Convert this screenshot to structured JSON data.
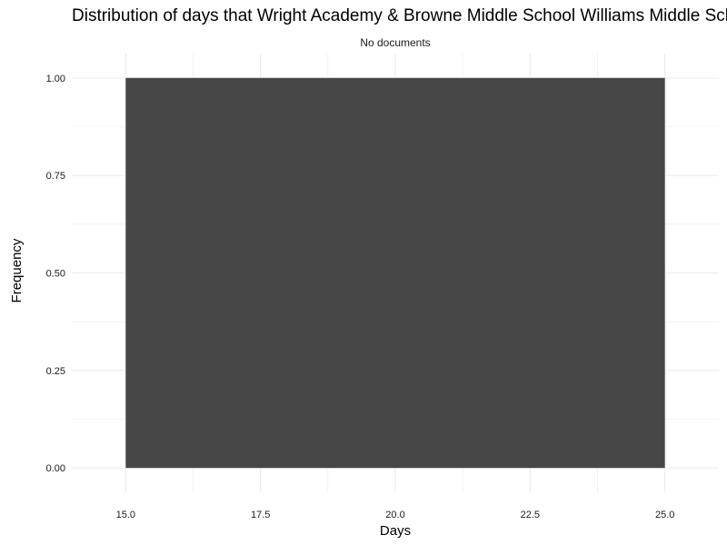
{
  "chart_data": {
    "type": "bar",
    "title": "Distribution of days that Wright Academy & Browne Middle School Williams Middle School",
    "subtitle": "No documents",
    "xlabel": "Days",
    "ylabel": "Frequency",
    "bins": [
      {
        "x_start": 15.0,
        "x_end": 25.0,
        "value": 1
      }
    ],
    "xlim": [
      14.0,
      26.0
    ],
    "ylim": [
      -0.0625,
      1.0625
    ],
    "x_ticks": [
      "15.0",
      "17.5",
      "20.0",
      "22.5",
      "25.0"
    ],
    "x_tick_values": [
      15.0,
      17.5,
      20.0,
      22.5,
      25.0
    ],
    "y_ticks": [
      "0.00",
      "0.25",
      "0.50",
      "0.75",
      "1.00"
    ],
    "y_tick_values": [
      0,
      0.25,
      0.5,
      0.75,
      1.0
    ],
    "grid": true,
    "bar_color": "#474747",
    "grid_color": "#ebebeb"
  }
}
